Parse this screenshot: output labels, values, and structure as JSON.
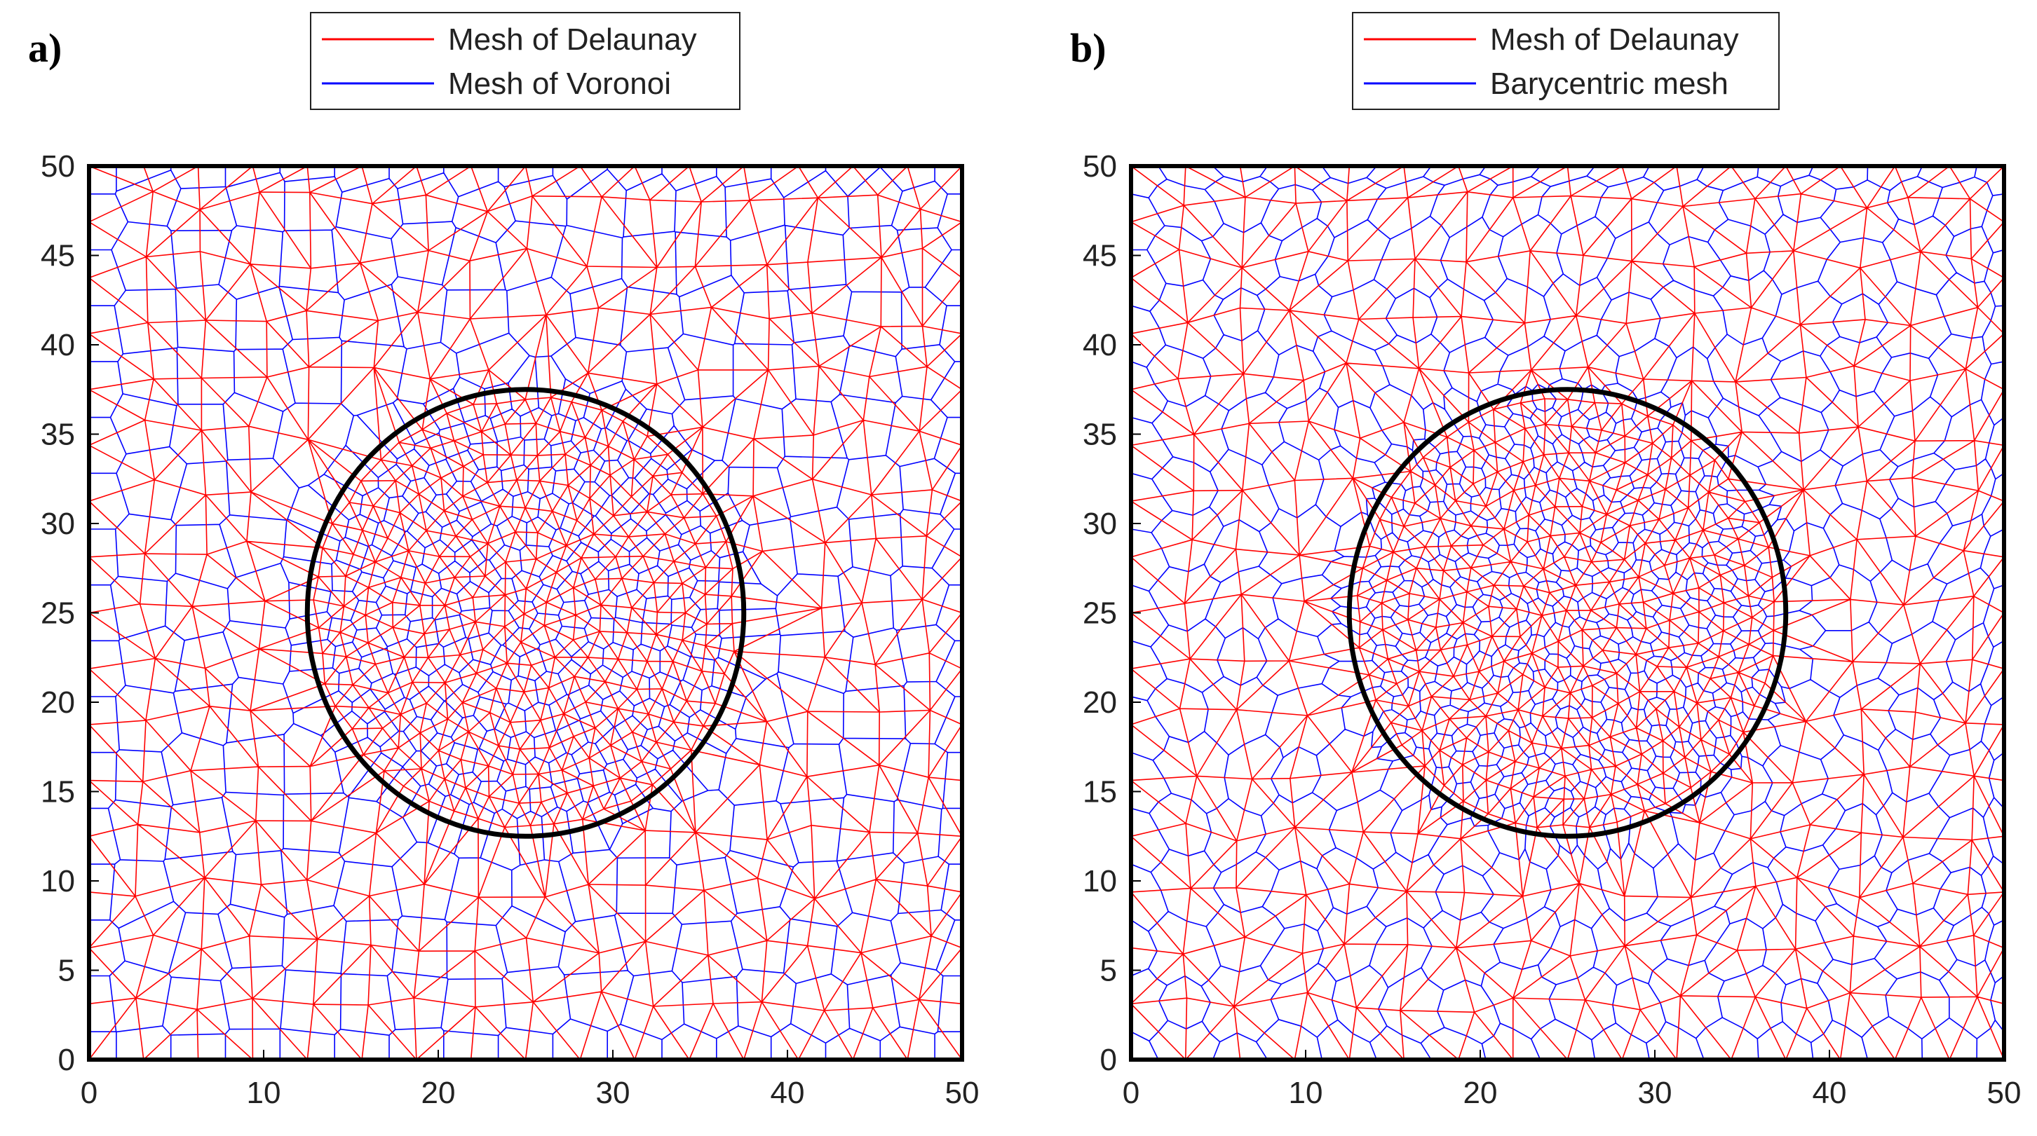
{
  "figure": {
    "panels": [
      {
        "label": "a)",
        "legend": [
          "Mesh of Delaunay",
          "Mesh of Voronoi"
        ]
      },
      {
        "label": "b)",
        "legend": [
          "Mesh of Delaunay",
          "Barycentric mesh"
        ]
      }
    ]
  },
  "colors": {
    "delaunay": "#ff0000",
    "secondary": "#0000ff",
    "axes": "#000000",
    "circle": "#000000"
  },
  "chart_data": [
    {
      "type": "mesh",
      "panel": "a)",
      "xlim": [
        0,
        50
      ],
      "ylim": [
        0,
        50
      ],
      "xticks": [
        0,
        10,
        20,
        30,
        40,
        50
      ],
      "yticks": [
        0,
        5,
        10,
        15,
        20,
        25,
        30,
        35,
        40,
        45,
        50
      ],
      "series": [
        {
          "name": "Mesh of Delaunay",
          "color": "#ff0000"
        },
        {
          "name": "Mesh of Voronoi",
          "color": "#0000ff"
        }
      ],
      "circle": {
        "center": [
          25,
          25
        ],
        "radius": 12.5
      },
      "legend_position": "top"
    },
    {
      "type": "mesh",
      "panel": "b)",
      "xlim": [
        0,
        50
      ],
      "ylim": [
        0,
        50
      ],
      "xticks": [
        0,
        10,
        20,
        30,
        40,
        50
      ],
      "yticks": [
        0,
        5,
        10,
        15,
        20,
        25,
        30,
        35,
        40,
        45,
        50
      ],
      "series": [
        {
          "name": "Mesh of Delaunay",
          "color": "#ff0000"
        },
        {
          "name": "Barycentric mesh",
          "color": "#0000ff"
        }
      ],
      "circle": {
        "center": [
          25,
          25
        ],
        "radius": 12.5
      },
      "legend_position": "top"
    }
  ]
}
